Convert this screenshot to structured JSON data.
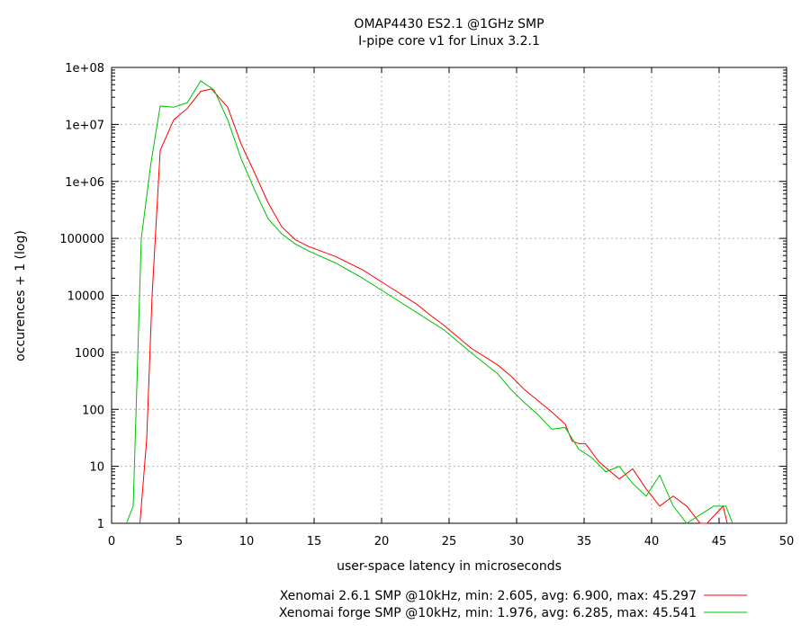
{
  "chart_data": {
    "type": "line",
    "title": [
      "OMAP4430 ES2.1 @1GHz SMP",
      "I-pipe core v1 for Linux 3.2.1"
    ],
    "xlabel": "user-space latency in microseconds",
    "ylabel": "occurences + 1 (log)",
    "xlim": [
      0,
      50
    ],
    "ylim": [
      1,
      100000000
    ],
    "yscale": "log",
    "grid": true,
    "legend_position": "bottom",
    "x_ticks": [
      "0",
      "5",
      "10",
      "15",
      "20",
      "25",
      "30",
      "35",
      "40",
      "45",
      "50"
    ],
    "y_ticks": [
      "1",
      "10",
      "100",
      "1000",
      "10000",
      "100000",
      "1e+06",
      "1e+07",
      "1e+08"
    ],
    "series": [
      {
        "name": "Xenomai 2.6.1 SMP @10kHz, min: 2.605, avg: 6.900, max: 45.297",
        "color": "#ff0000",
        "points": [
          [
            2.1,
            1
          ],
          [
            2.6,
            30
          ],
          [
            3.0,
            10000
          ],
          [
            3.6,
            3500000
          ],
          [
            4.6,
            12000000
          ],
          [
            5.6,
            19000000
          ],
          [
            6.6,
            38000000
          ],
          [
            7.4,
            42000000
          ],
          [
            8.6,
            20000000
          ],
          [
            9.6,
            4500000
          ],
          [
            10.6,
            1400000
          ],
          [
            11.6,
            420000
          ],
          [
            12.6,
            160000
          ],
          [
            13.6,
            95000
          ],
          [
            14.6,
            72000
          ],
          [
            16.6,
            48000
          ],
          [
            18.6,
            28000
          ],
          [
            20.6,
            14000
          ],
          [
            22.6,
            7000
          ],
          [
            23.6,
            4500
          ],
          [
            24.6,
            3000
          ],
          [
            26.6,
            1200
          ],
          [
            28.6,
            600
          ],
          [
            29.6,
            380
          ],
          [
            30.6,
            220
          ],
          [
            32.6,
            90
          ],
          [
            33.6,
            55
          ],
          [
            34.1,
            28
          ],
          [
            34.6,
            25
          ],
          [
            35.1,
            25
          ],
          [
            36.1,
            12
          ],
          [
            37.6,
            6
          ],
          [
            38.6,
            9
          ],
          [
            39.6,
            4
          ],
          [
            40.6,
            2
          ],
          [
            41.6,
            3
          ],
          [
            42.6,
            2
          ],
          [
            43.6,
            1
          ],
          [
            44.1,
            1
          ],
          [
            45.3,
            2
          ],
          [
            45.6,
            1
          ]
        ]
      },
      {
        "name": "Xenomai forge SMP @10kHz, min: 1.976, avg: 6.285, max: 45.541",
        "color": "#00c000",
        "points": [
          [
            1.1,
            1
          ],
          [
            1.6,
            2
          ],
          [
            2.2,
            100000
          ],
          [
            2.9,
            2000000
          ],
          [
            3.6,
            21000000
          ],
          [
            4.6,
            20000000
          ],
          [
            5.6,
            24000000
          ],
          [
            6.6,
            58000000
          ],
          [
            7.6,
            40000000
          ],
          [
            8.6,
            12000000
          ],
          [
            9.6,
            2500000
          ],
          [
            10.6,
            700000
          ],
          [
            11.6,
            220000
          ],
          [
            12.6,
            120000
          ],
          [
            13.6,
            80000
          ],
          [
            14.6,
            60000
          ],
          [
            16.6,
            37000
          ],
          [
            18.6,
            20000
          ],
          [
            20.6,
            10000
          ],
          [
            22.6,
            5000
          ],
          [
            24.6,
            2500
          ],
          [
            26.6,
            1000
          ],
          [
            28.6,
            420
          ],
          [
            29.6,
            220
          ],
          [
            30.6,
            130
          ],
          [
            31.6,
            80
          ],
          [
            32.6,
            45
          ],
          [
            33.6,
            48
          ],
          [
            34.6,
            20
          ],
          [
            35.6,
            14
          ],
          [
            36.6,
            8
          ],
          [
            37.6,
            10
          ],
          [
            38.6,
            5
          ],
          [
            39.6,
            3
          ],
          [
            40.6,
            7
          ],
          [
            41.6,
            2
          ],
          [
            42.6,
            1
          ],
          [
            44.6,
            2
          ],
          [
            45.5,
            2
          ],
          [
            46.0,
            1
          ]
        ]
      }
    ]
  }
}
